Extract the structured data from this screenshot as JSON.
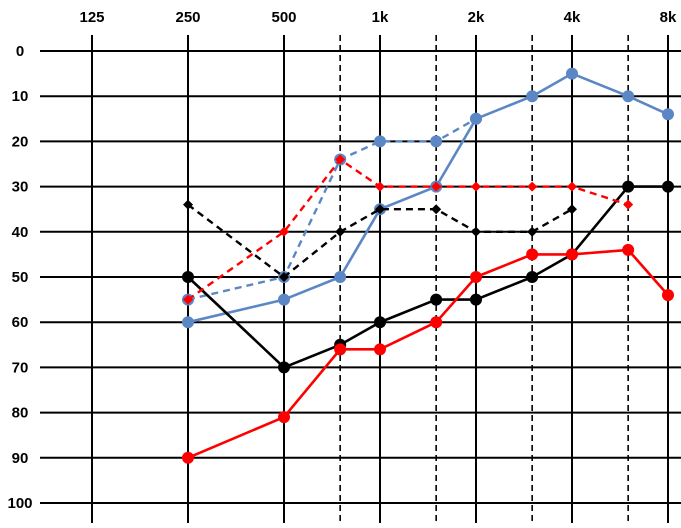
{
  "chart_data": {
    "type": "line",
    "title": "",
    "xlabel": "",
    "ylabel": "",
    "x_scale": "log2",
    "y_inverted": true,
    "grid": true,
    "legend": "none",
    "x_tick_labels": [
      {
        "freq": 125,
        "label": "125"
      },
      {
        "freq": 250,
        "label": "250"
      },
      {
        "freq": 500,
        "label": "500"
      },
      {
        "freq": 1000,
        "label": "1k"
      },
      {
        "freq": 2000,
        "label": "2k"
      },
      {
        "freq": 4000,
        "label": "4k"
      },
      {
        "freq": 8000,
        "label": "8k"
      }
    ],
    "x_solid_gridlines": [
      125,
      250,
      500,
      1000,
      2000,
      4000,
      8000
    ],
    "x_dashed_gridlines": [
      750,
      1500,
      3000,
      6000
    ],
    "y_ticks": [
      0,
      10,
      20,
      30,
      40,
      50,
      60,
      70,
      80,
      90,
      100
    ],
    "ylim": [
      0,
      100
    ],
    "series": [
      {
        "color": "#5b87c5",
        "dashed": false,
        "marker": "circle",
        "x": [
          250,
          500,
          750,
          1000,
          1500,
          2000,
          3000,
          4000,
          6000,
          8000
        ],
        "y": [
          60,
          55,
          50,
          35,
          30,
          15,
          10,
          5,
          10,
          14
        ]
      },
      {
        "color": "#5b87c5",
        "dashed": true,
        "marker": "circle",
        "x": [
          250,
          500,
          750,
          1000,
          1500,
          2000
        ],
        "y": [
          55,
          50,
          24,
          20,
          20,
          15
        ]
      },
      {
        "color": "#000000",
        "dashed": false,
        "marker": "circle",
        "x": [
          250,
          500,
          750,
          1000,
          1500,
          2000,
          3000,
          4000,
          6000,
          8000
        ],
        "y": [
          50,
          70,
          65,
          60,
          55,
          55,
          50,
          45,
          30,
          30
        ]
      },
      {
        "color": "#000000",
        "dashed": true,
        "marker": "diamond",
        "x": [
          250,
          500,
          750,
          1000,
          1500,
          2000,
          3000,
          4000
        ],
        "y": [
          34,
          50,
          40,
          35,
          35,
          40,
          40,
          35
        ]
      },
      {
        "color": "#ff0000",
        "dashed": false,
        "marker": "circle",
        "x": [
          250,
          500,
          750,
          1000,
          1500,
          2000,
          3000,
          4000,
          6000,
          8000
        ],
        "y": [
          90,
          81,
          66,
          66,
          60,
          50,
          45,
          45,
          44,
          54
        ]
      },
      {
        "color": "#ff0000",
        "dashed": true,
        "marker": "diamond",
        "x": [
          250,
          500,
          750,
          1000,
          1500,
          2000,
          3000,
          4000,
          6000
        ],
        "y": [
          55,
          40,
          24,
          30,
          30,
          30,
          30,
          30,
          34
        ]
      }
    ]
  }
}
